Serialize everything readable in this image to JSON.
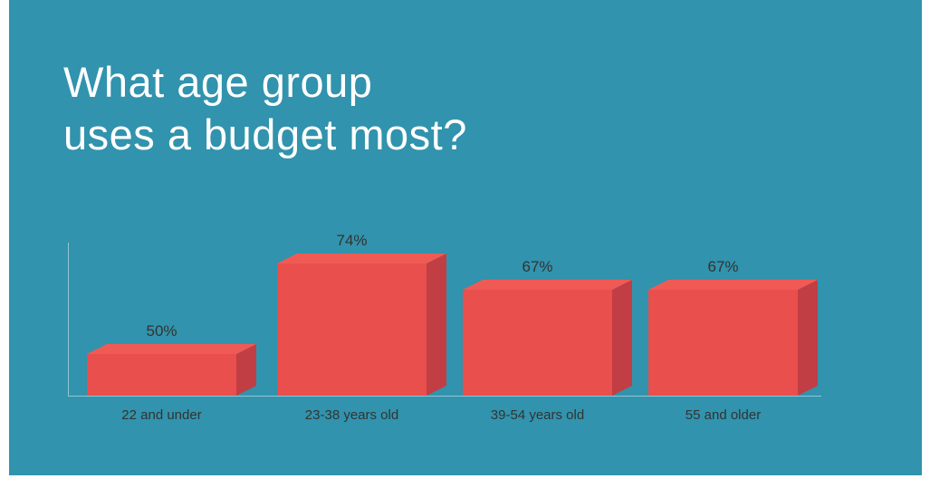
{
  "title_lines": [
    "What age group",
    "uses a budget most?"
  ],
  "colors": {
    "background": "#3193ad",
    "page": "#ffffff",
    "title": "#ffffff",
    "bar_front": "#e94f4c",
    "bar_top": "#ef5b54",
    "bar_side": "#c13e44",
    "axis": "#e4f0f3",
    "label": "#333333"
  },
  "chart_data": {
    "type": "bar",
    "style": "3d-bars",
    "title": "What age group uses a budget most?",
    "categories": [
      "22 and under",
      "23-38 years old",
      "39-54 years old",
      "55 and older"
    ],
    "values": [
      50,
      74,
      67,
      67
    ],
    "value_labels": [
      "50%",
      "74%",
      "67%",
      "67%"
    ],
    "xlabel": "",
    "ylabel": "",
    "ylim": [
      39,
      76
    ],
    "grid": false,
    "legend": false
  }
}
